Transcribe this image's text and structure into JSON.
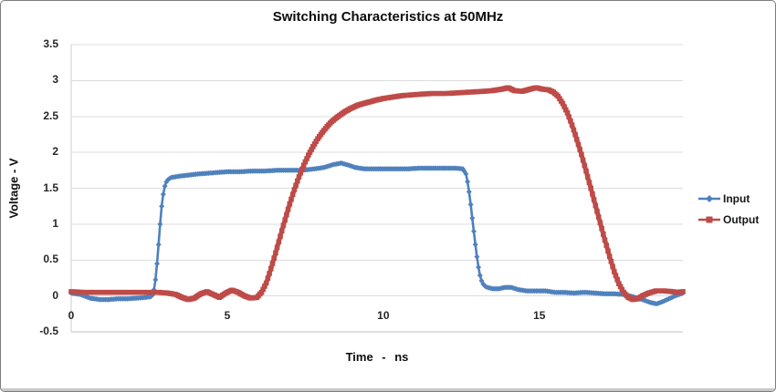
{
  "chart_data": {
    "type": "line",
    "title": "Switching Characteristics at 50MHz",
    "xlabel": "Time - ns",
    "ylabel": "Voltage - V",
    "xlim": [
      0,
      19.6
    ],
    "ylim": [
      -0.5,
      3.5
    ],
    "x_ticks": [
      0,
      5,
      10,
      15
    ],
    "y_ticks": [
      3.5,
      3,
      2.5,
      2,
      1.5,
      1,
      0.5,
      0,
      -0.5
    ],
    "grid": "horizontal",
    "gridline_color": "#dcdcdc",
    "axis_line_color": "#bfbfbf",
    "legend_position": "right",
    "sample_interval_ns": 0.05,
    "series": [
      {
        "name": "Input",
        "color": "#4f81bd",
        "marker": "diamond",
        "line_width": 2.6,
        "points": [
          [
            0,
            0.04
          ],
          [
            0.3,
            0.02
          ],
          [
            0.6,
            -0.03
          ],
          [
            0.9,
            -0.05
          ],
          [
            1.2,
            -0.05
          ],
          [
            1.5,
            -0.04
          ],
          [
            1.8,
            -0.04
          ],
          [
            2.1,
            -0.03
          ],
          [
            2.4,
            -0.02
          ],
          [
            2.55,
            -0.01
          ],
          [
            2.62,
            0.02
          ],
          [
            2.68,
            0.15
          ],
          [
            2.72,
            0.3
          ],
          [
            2.78,
            0.6
          ],
          [
            2.84,
            0.95
          ],
          [
            2.9,
            1.25
          ],
          [
            2.96,
            1.45
          ],
          [
            3.02,
            1.57
          ],
          [
            3.1,
            1.62
          ],
          [
            3.2,
            1.65
          ],
          [
            3.35,
            1.66
          ],
          [
            3.5,
            1.67
          ],
          [
            3.7,
            1.68
          ],
          [
            3.9,
            1.69
          ],
          [
            4.1,
            1.7
          ],
          [
            4.4,
            1.71
          ],
          [
            4.7,
            1.72
          ],
          [
            5.0,
            1.73
          ],
          [
            5.4,
            1.73
          ],
          [
            5.8,
            1.74
          ],
          [
            6.2,
            1.74
          ],
          [
            6.6,
            1.75
          ],
          [
            7.0,
            1.75
          ],
          [
            7.4,
            1.75
          ],
          [
            7.8,
            1.77
          ],
          [
            8.1,
            1.79
          ],
          [
            8.4,
            1.83
          ],
          [
            8.65,
            1.85
          ],
          [
            8.9,
            1.82
          ],
          [
            9.1,
            1.79
          ],
          [
            9.4,
            1.77
          ],
          [
            9.7,
            1.77
          ],
          [
            10.0,
            1.77
          ],
          [
            10.4,
            1.77
          ],
          [
            10.8,
            1.77
          ],
          [
            11.2,
            1.78
          ],
          [
            11.6,
            1.78
          ],
          [
            12.0,
            1.78
          ],
          [
            12.3,
            1.78
          ],
          [
            12.55,
            1.77
          ],
          [
            12.65,
            1.7
          ],
          [
            12.72,
            1.55
          ],
          [
            12.78,
            1.35
          ],
          [
            12.84,
            1.12
          ],
          [
            12.9,
            0.9
          ],
          [
            12.96,
            0.68
          ],
          [
            13.02,
            0.48
          ],
          [
            13.08,
            0.32
          ],
          [
            13.14,
            0.22
          ],
          [
            13.22,
            0.15
          ],
          [
            13.32,
            0.12
          ],
          [
            13.5,
            0.1
          ],
          [
            13.7,
            0.1
          ],
          [
            13.9,
            0.12
          ],
          [
            14.1,
            0.12
          ],
          [
            14.3,
            0.09
          ],
          [
            14.6,
            0.07
          ],
          [
            14.9,
            0.07
          ],
          [
            15.2,
            0.07
          ],
          [
            15.5,
            0.05
          ],
          [
            15.8,
            0.05
          ],
          [
            16.1,
            0.04
          ],
          [
            16.45,
            0.05
          ],
          [
            16.8,
            0.04
          ],
          [
            17.1,
            0.03
          ],
          [
            17.4,
            0.03
          ],
          [
            17.7,
            0.02
          ],
          [
            18.0,
            -0.01
          ],
          [
            18.3,
            -0.05
          ],
          [
            18.55,
            -0.09
          ],
          [
            18.75,
            -0.11
          ],
          [
            18.95,
            -0.08
          ],
          [
            19.15,
            -0.04
          ],
          [
            19.35,
            0.0
          ],
          [
            19.6,
            0.04
          ]
        ]
      },
      {
        "name": "Output",
        "color": "#be4b48",
        "marker": "square",
        "line_width": 5,
        "points": [
          [
            0,
            0.06
          ],
          [
            0.4,
            0.05
          ],
          [
            0.8,
            0.05
          ],
          [
            1.2,
            0.05
          ],
          [
            1.6,
            0.05
          ],
          [
            2.0,
            0.05
          ],
          [
            2.4,
            0.05
          ],
          [
            2.8,
            0.05
          ],
          [
            3.1,
            0.04
          ],
          [
            3.35,
            0.02
          ],
          [
            3.55,
            -0.02
          ],
          [
            3.75,
            -0.05
          ],
          [
            3.95,
            -0.03
          ],
          [
            4.15,
            0.03
          ],
          [
            4.35,
            0.06
          ],
          [
            4.55,
            0.02
          ],
          [
            4.75,
            -0.02
          ],
          [
            4.95,
            0.04
          ],
          [
            5.15,
            0.08
          ],
          [
            5.35,
            0.05
          ],
          [
            5.55,
            0.0
          ],
          [
            5.75,
            -0.03
          ],
          [
            5.95,
            -0.02
          ],
          [
            6.1,
            0.05
          ],
          [
            6.25,
            0.18
          ],
          [
            6.4,
            0.38
          ],
          [
            6.55,
            0.6
          ],
          [
            6.7,
            0.83
          ],
          [
            6.85,
            1.06
          ],
          [
            7.0,
            1.28
          ],
          [
            7.15,
            1.48
          ],
          [
            7.3,
            1.66
          ],
          [
            7.45,
            1.82
          ],
          [
            7.6,
            1.96
          ],
          [
            7.75,
            2.08
          ],
          [
            7.9,
            2.19
          ],
          [
            8.05,
            2.28
          ],
          [
            8.2,
            2.36
          ],
          [
            8.35,
            2.43
          ],
          [
            8.55,
            2.5
          ],
          [
            8.75,
            2.56
          ],
          [
            8.95,
            2.61
          ],
          [
            9.2,
            2.66
          ],
          [
            9.45,
            2.69
          ],
          [
            9.7,
            2.72
          ],
          [
            10.0,
            2.75
          ],
          [
            10.3,
            2.77
          ],
          [
            10.6,
            2.79
          ],
          [
            10.9,
            2.8
          ],
          [
            11.2,
            2.81
          ],
          [
            11.6,
            2.82
          ],
          [
            12.0,
            2.82
          ],
          [
            12.4,
            2.83
          ],
          [
            12.8,
            2.84
          ],
          [
            13.2,
            2.85
          ],
          [
            13.5,
            2.86
          ],
          [
            13.8,
            2.88
          ],
          [
            14.0,
            2.9
          ],
          [
            14.2,
            2.86
          ],
          [
            14.45,
            2.85
          ],
          [
            14.7,
            2.88
          ],
          [
            14.9,
            2.9
          ],
          [
            15.1,
            2.88
          ],
          [
            15.3,
            2.87
          ],
          [
            15.45,
            2.84
          ],
          [
            15.6,
            2.78
          ],
          [
            15.75,
            2.68
          ],
          [
            15.9,
            2.55
          ],
          [
            16.05,
            2.38
          ],
          [
            16.2,
            2.18
          ],
          [
            16.35,
            1.97
          ],
          [
            16.5,
            1.74
          ],
          [
            16.65,
            1.5
          ],
          [
            16.8,
            1.26
          ],
          [
            16.95,
            1.02
          ],
          [
            17.1,
            0.78
          ],
          [
            17.25,
            0.55
          ],
          [
            17.4,
            0.34
          ],
          [
            17.55,
            0.17
          ],
          [
            17.7,
            0.05
          ],
          [
            17.85,
            -0.02
          ],
          [
            18.0,
            -0.05
          ],
          [
            18.15,
            -0.04
          ],
          [
            18.3,
            0.0
          ],
          [
            18.5,
            0.04
          ],
          [
            18.75,
            0.07
          ],
          [
            19.0,
            0.07
          ],
          [
            19.25,
            0.06
          ],
          [
            19.45,
            0.05
          ],
          [
            19.6,
            0.06
          ]
        ]
      }
    ]
  }
}
